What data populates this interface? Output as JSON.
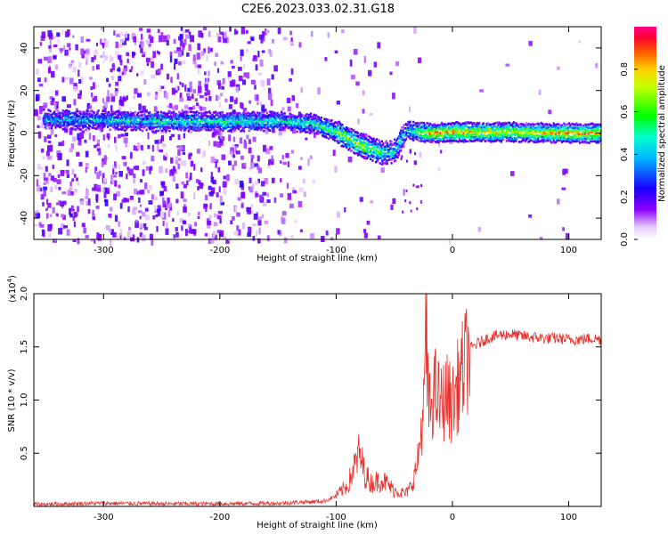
{
  "title": "C2E6.2023.033.02.31.G18",
  "chart_data": [
    {
      "type": "heatmap",
      "title": "C2E6.2023.033.02.31.G18",
      "xlabel": "Height of straight line (km)",
      "ylabel": "Frequency (Hz)",
      "xlim": [
        -360,
        128
      ],
      "ylim": [
        -50,
        50
      ],
      "xticks": [
        -300,
        -200,
        -100,
        0,
        100
      ],
      "yticks": [
        -40,
        -20,
        0,
        20,
        40
      ],
      "colorbar": {
        "label": "Normalized spectral amplitude",
        "ticks": [
          0.0,
          0.2,
          0.4,
          0.6,
          0.8
        ],
        "range": [
          0,
          1
        ],
        "colors": [
          "#ffffff",
          "#7a00ff",
          "#0000ff",
          "#00ffff",
          "#00ff00",
          "#ffff00",
          "#ff8000",
          "#ff0000",
          "#ff0080"
        ]
      },
      "main_band": {
        "x": [
          -350,
          -300,
          -250,
          -200,
          -150,
          -120,
          -100,
          -80,
          -60,
          -50,
          -40,
          -30,
          -20,
          0,
          50,
          100,
          128
        ],
        "y": [
          7,
          6.5,
          6,
          6,
          6,
          5,
          1,
          -5,
          -9,
          -8,
          2,
          1,
          0.5,
          1,
          1,
          0.5,
          0.5
        ],
        "amplitude": [
          0.35,
          0.4,
          0.45,
          0.5,
          0.45,
          0.5,
          0.6,
          0.65,
          0.5,
          0.45,
          0.4,
          0.6,
          0.8,
          0.8,
          0.7,
          0.8,
          0.8
        ]
      }
    },
    {
      "type": "line",
      "xlabel": "Height of straight line (km)",
      "ylabel": "SNR (10 * v/v)",
      "y_multiplier": "(x10",
      "y_multiplier_exp": "4",
      "y_multiplier_close": ")",
      "xlim": [
        -360,
        128
      ],
      "ylim": [
        0,
        20000
      ],
      "xticks": [
        -300,
        -200,
        -100,
        0,
        100
      ],
      "yticks": [
        5000,
        10000,
        15000,
        20000
      ],
      "ytick_labels": [
        "0.5",
        "1.0",
        "1.5",
        "2.0"
      ],
      "color": "#e8302c",
      "x": [
        -360,
        -300,
        -250,
        -200,
        -150,
        -110,
        -100,
        -90,
        -85,
        -80,
        -75,
        -70,
        -60,
        -50,
        -40,
        -35,
        -30,
        -25,
        -22,
        -20,
        -15,
        -10,
        -5,
        0,
        5,
        10,
        15,
        20,
        30,
        40,
        50,
        60,
        70,
        80,
        90,
        100,
        110,
        120,
        128
      ],
      "y": [
        200,
        300,
        250,
        250,
        300,
        500,
        1000,
        2000,
        3500,
        5000,
        3000,
        2200,
        2500,
        1500,
        1200,
        2000,
        4000,
        9000,
        13000,
        9000,
        11000,
        9500,
        10500,
        9500,
        11500,
        13000,
        14800,
        15200,
        15800,
        16100,
        16200,
        16000,
        15900,
        15800,
        15800,
        15700,
        15700,
        15800,
        15700
      ]
    }
  ]
}
